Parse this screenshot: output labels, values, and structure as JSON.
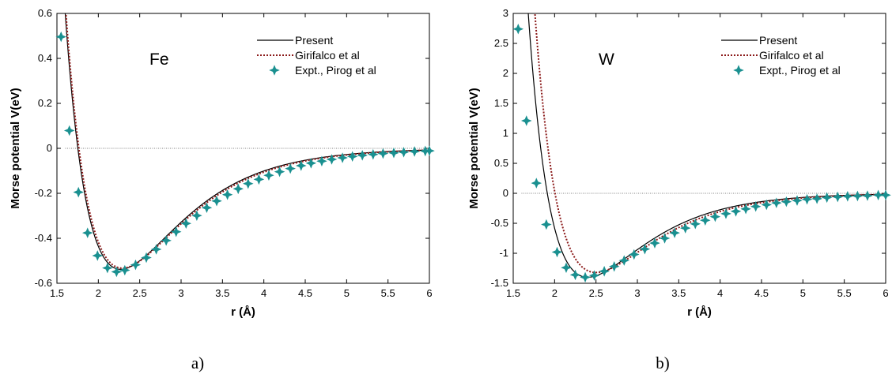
{
  "chart_data": [
    {
      "type": "line",
      "title": "Fe",
      "xlabel": "r (Å)",
      "ylabel": "Morse potential V(eV)",
      "xlim": [
        1.5,
        6
      ],
      "ylim": [
        -0.6,
        0.6
      ],
      "xticks": [
        "1.5",
        "2",
        "2.5",
        "3",
        "3.5",
        "4",
        "4.5",
        "5",
        "5.5",
        "6"
      ],
      "yticks": [
        "0.6",
        "0.4",
        "0.2",
        "0",
        "-0.2",
        "-0.4",
        "-0.6"
      ],
      "caption": "a)",
      "legend_position": "top-right",
      "zero_line": true,
      "params": {
        "D": 0.54,
        "re": 2.28,
        "a": 1.35
      },
      "series": [
        {
          "name": "Present",
          "style": "solid",
          "color": "#000000",
          "params": {
            "D": 0.538,
            "re": 2.27,
            "a": 1.34
          }
        },
        {
          "name": "Girifalco et al",
          "style": "dotted",
          "color": "#8b1a1a",
          "params": {
            "D": 0.5328,
            "re": 2.29,
            "a": 1.32
          }
        },
        {
          "name": "Expt., Pirog et al",
          "style": "markers",
          "color": "#1a9090",
          "x": [
            1.55,
            1.65,
            1.76,
            1.87,
            1.99,
            2.11,
            2.22,
            2.32,
            2.45,
            2.58,
            2.7,
            2.82,
            2.94,
            3.06,
            3.19,
            3.31,
            3.43,
            3.56,
            3.69,
            3.81,
            3.94,
            4.06,
            4.19,
            4.32,
            4.45,
            4.57,
            4.7,
            4.82,
            4.95,
            5.07,
            5.19,
            5.32,
            5.44,
            5.57,
            5.69,
            5.82,
            5.95,
            6.0
          ],
          "y": [
            0.496,
            0.079,
            -0.195,
            -0.376,
            -0.477,
            -0.532,
            -0.549,
            -0.542,
            -0.518,
            -0.486,
            -0.449,
            -0.41,
            -0.371,
            -0.334,
            -0.299,
            -0.264,
            -0.234,
            -0.206,
            -0.18,
            -0.157,
            -0.138,
            -0.12,
            -0.104,
            -0.09,
            -0.077,
            -0.066,
            -0.057,
            -0.049,
            -0.042,
            -0.036,
            -0.031,
            -0.027,
            -0.023,
            -0.02,
            -0.017,
            -0.014,
            -0.012,
            -0.011
          ]
        }
      ]
    },
    {
      "type": "line",
      "title": "W",
      "xlabel": "r (Å)",
      "ylabel": "Morse potential V(eV)",
      "xlim": [
        1.5,
        6
      ],
      "ylim": [
        -1.5,
        3
      ],
      "xticks": [
        "1.5",
        "2",
        "2.5",
        "3",
        "3.5",
        "4",
        "4.5",
        "5",
        "5.5",
        "6"
      ],
      "yticks": [
        "3",
        "2.5",
        "2",
        "1.5",
        "1",
        "0.5",
        "0",
        "-0.5",
        "-1",
        "-1.5"
      ],
      "caption": "b)",
      "legend_position": "top-right",
      "zero_line": true,
      "series": [
        {
          "name": "Present",
          "style": "solid",
          "color": "#000000",
          "params": {
            "D": 1.4,
            "re": 2.4,
            "a": 1.42
          }
        },
        {
          "name": "Girifalco et al",
          "style": "dotted",
          "color": "#8b1a1a",
          "params": {
            "D": 1.32,
            "re": 2.5,
            "a": 1.4
          }
        },
        {
          "name": "Expt., Pirog et al",
          "style": "markers",
          "color": "#1a9090",
          "x": [
            1.56,
            1.66,
            1.78,
            1.9,
            2.03,
            2.14,
            2.25,
            2.37,
            2.48,
            2.6,
            2.72,
            2.84,
            2.96,
            3.09,
            3.21,
            3.33,
            3.45,
            3.58,
            3.7,
            3.82,
            3.94,
            4.07,
            4.19,
            4.31,
            4.43,
            4.56,
            4.68,
            4.8,
            4.93,
            5.05,
            5.17,
            5.29,
            5.42,
            5.54,
            5.66,
            5.78,
            5.91,
            6.0
          ],
          "y": [
            2.74,
            1.21,
            0.17,
            -0.52,
            -0.98,
            -1.24,
            -1.36,
            -1.4,
            -1.37,
            -1.3,
            -1.22,
            -1.12,
            -1.02,
            -0.93,
            -0.83,
            -0.75,
            -0.66,
            -0.58,
            -0.51,
            -0.45,
            -0.39,
            -0.34,
            -0.3,
            -0.26,
            -0.22,
            -0.19,
            -0.16,
            -0.14,
            -0.12,
            -0.1,
            -0.09,
            -0.07,
            -0.06,
            -0.05,
            -0.045,
            -0.04,
            -0.03,
            -0.03
          ]
        }
      ]
    }
  ]
}
